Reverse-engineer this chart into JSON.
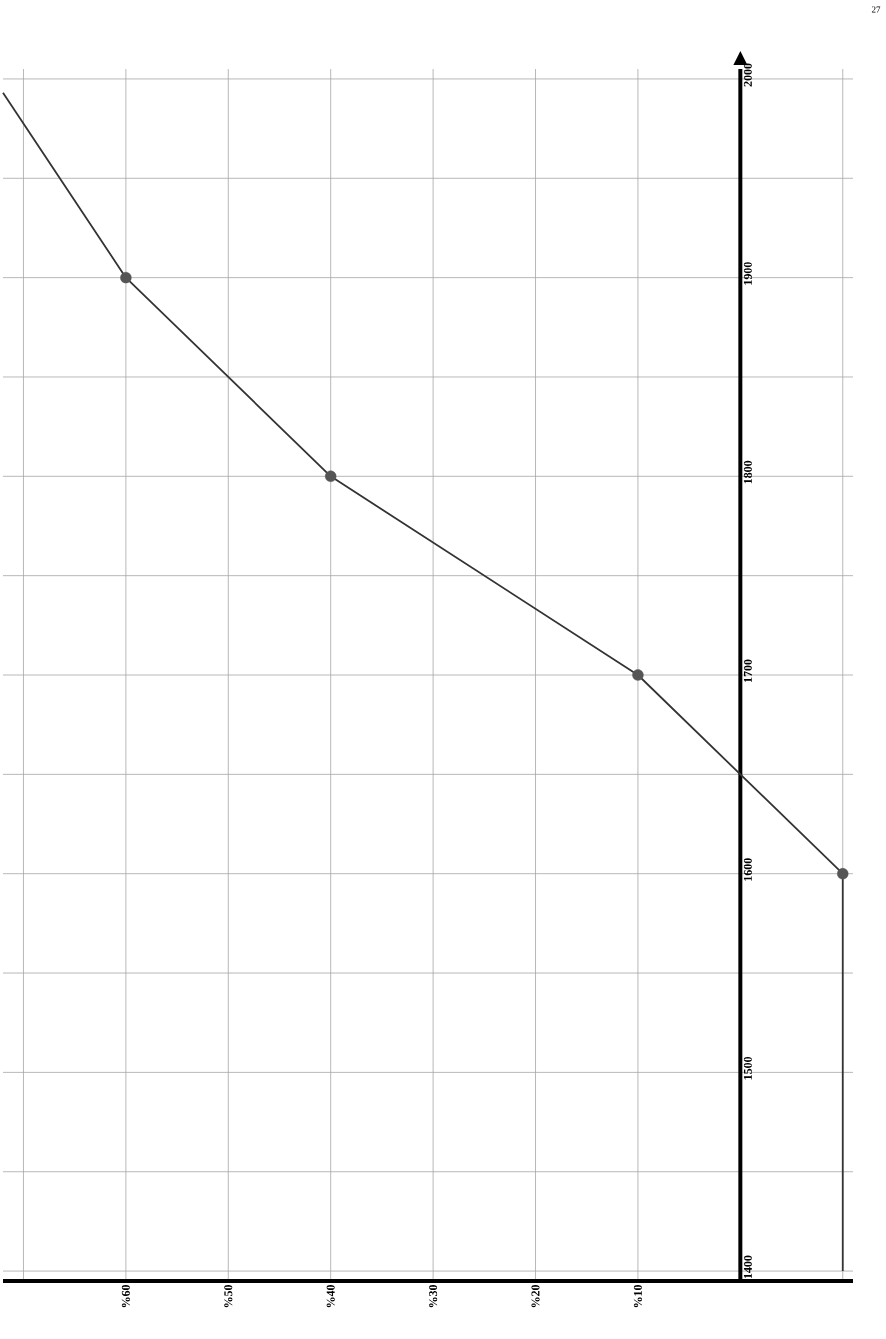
{
  "chart_data": {
    "type": "line",
    "series": [
      {
        "color": "#333333",
        "marker": "none",
        "x": [
          -10,
          -10,
          10,
          40,
          60,
          72
        ],
        "values": [
          1400,
          1600,
          1700,
          1800,
          1900,
          1993
        ]
      },
      {
        "type": "scatter",
        "color": "#555555",
        "marker": "circle",
        "x": [
          -10,
          10,
          40,
          60
        ],
        "values": [
          1600,
          1700,
          1800,
          1900
        ]
      }
    ],
    "xlim": [
      72,
      -11
    ],
    "ylim": [
      1395,
      2005
    ],
    "xticks": [
      {
        "value": -10,
        "label": null
      },
      {
        "value": 0,
        "label": null
      },
      {
        "value": 10,
        "label": "%10"
      },
      {
        "value": 20,
        "label": "%20"
      },
      {
        "value": 30,
        "label": "%30"
      },
      {
        "value": 40,
        "label": "%40"
      },
      {
        "value": 50,
        "label": "%50"
      },
      {
        "value": 60,
        "label": "%60"
      },
      {
        "value": 70,
        "label": null
      }
    ],
    "yticks": [
      1400,
      {
        "value": 1450,
        "label": null
      },
      1500,
      {
        "value": 1550,
        "label": null
      },
      1600,
      {
        "value": 1650,
        "label": null
      },
      1700,
      {
        "value": 1750,
        "label": null
      },
      1800,
      {
        "value": 1850,
        "label": null
      },
      1900,
      {
        "value": 1950,
        "label": null
      },
      2000
    ],
    "grid": true,
    "annotations": [
      "27"
    ]
  }
}
